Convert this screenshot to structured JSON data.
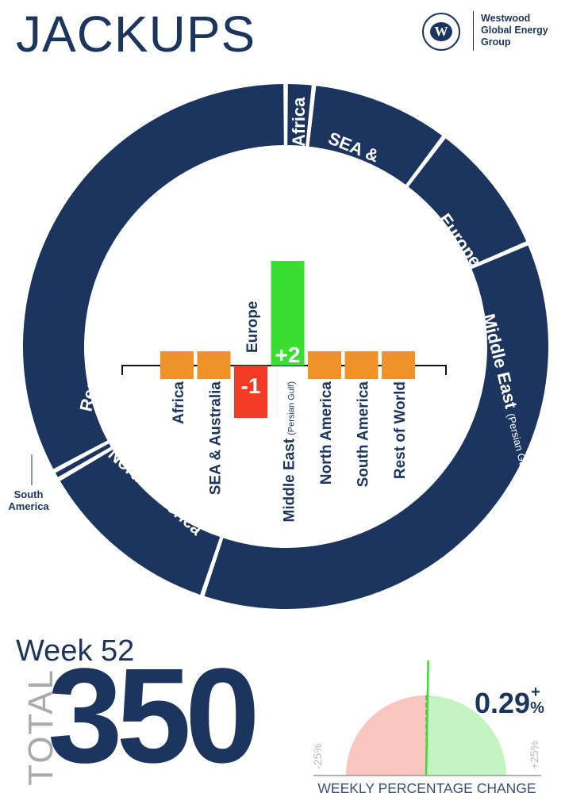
{
  "header": {
    "title": "JACKUPS",
    "logo": {
      "mark": "W",
      "lines": [
        "Westwood",
        "Global Energy",
        "Group"
      ]
    }
  },
  "colors": {
    "navy": "#1c355e",
    "orange": "#f0922a",
    "red": "#f33a24",
    "green": "#38de30",
    "gauge_neg": "#f9c5bc",
    "gauge_pos": "#c4f4c2"
  },
  "chart_data": [
    {
      "type": "pie",
      "variant": "donut",
      "categories": [
        "Africa",
        "SEA & Australia",
        "Europe",
        "Middle East",
        "North America",
        "South America",
        "Rest of World"
      ],
      "segment_labels": [
        "Africa",
        "SEA &\nAustralia",
        "Europe",
        "Middle East",
        "North America",
        "South\nAmerica",
        "Rest of World"
      ],
      "middle_east_note": "(Persian Gulf & Red Sea)",
      "values": [
        6,
        30,
        29,
        128,
        40,
        2,
        115
      ]
    },
    {
      "type": "bar",
      "categories": [
        "Africa",
        "SEA & Australia",
        "Europe",
        "Middle East",
        "North America",
        "South America",
        "Rest of World"
      ],
      "middle_east_note": "(Persian Gulf)",
      "values": [
        0,
        0,
        -1,
        2,
        0,
        0,
        0
      ],
      "data_labels": [
        "",
        "",
        "-1",
        "+2",
        "",
        "",
        ""
      ]
    },
    {
      "type": "gauge",
      "value": 0.29,
      "value_label": "0.29",
      "sign": "+",
      "unit": "%",
      "range": [
        -25,
        25
      ],
      "min_label": "-25%",
      "max_label": "+25%",
      "title": "WEEKLY PERCENTAGE CHANGE"
    }
  ],
  "summary": {
    "week": "Week 52",
    "total_label": "TOTAL",
    "total": "350"
  }
}
